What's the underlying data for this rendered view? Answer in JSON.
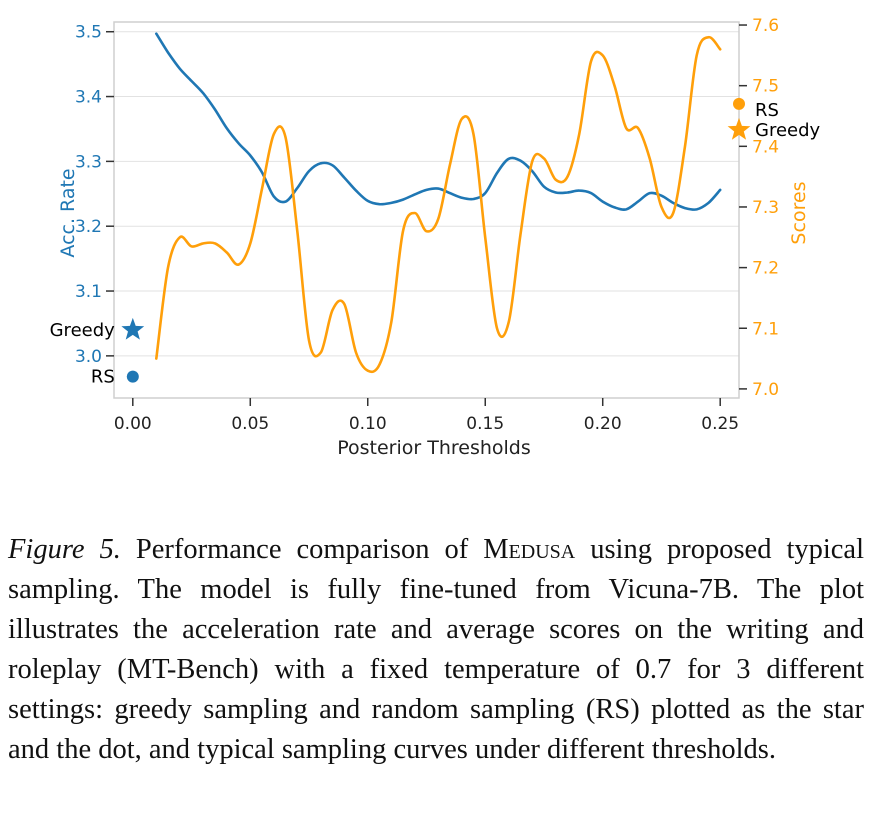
{
  "chart_data": {
    "type": "line",
    "xlabel": "Posterior Thresholds",
    "ylabel_left": "Acc. Rate",
    "ylabel_right": "Scores",
    "xlim": [
      -0.008,
      0.258
    ],
    "ylim_left": [
      2.935,
      3.515
    ],
    "ylim_right": [
      6.985,
      7.605
    ],
    "x_ticks": [
      "0.00",
      "0.05",
      "0.10",
      "0.15",
      "0.20",
      "0.25"
    ],
    "y_ticks_left": [
      "3.0",
      "3.1",
      "3.2",
      "3.3",
      "3.4",
      "3.5"
    ],
    "y_ticks_right": [
      "7.0",
      "7.1",
      "7.2",
      "7.3",
      "7.4",
      "7.5",
      "7.6"
    ],
    "colors": {
      "acc": "#1f77b4",
      "score": "#ff9f0a",
      "grid": "#e2e2e2"
    },
    "series": [
      {
        "name": "Acc. Rate",
        "axis": "left",
        "x": [
          0.01,
          0.015,
          0.02,
          0.025,
          0.03,
          0.035,
          0.04,
          0.045,
          0.05,
          0.055,
          0.06,
          0.065,
          0.07,
          0.075,
          0.08,
          0.085,
          0.09,
          0.095,
          0.1,
          0.105,
          0.11,
          0.115,
          0.12,
          0.125,
          0.13,
          0.135,
          0.14,
          0.145,
          0.15,
          0.155,
          0.16,
          0.165,
          0.17,
          0.175,
          0.18,
          0.185,
          0.19,
          0.195,
          0.2,
          0.205,
          0.21,
          0.215,
          0.22,
          0.225,
          0.23,
          0.235,
          0.24,
          0.245,
          0.25
        ],
        "values": [
          3.497,
          3.468,
          3.443,
          3.424,
          3.405,
          3.38,
          3.351,
          3.328,
          3.309,
          3.283,
          3.246,
          3.238,
          3.259,
          3.285,
          3.297,
          3.294,
          3.275,
          3.255,
          3.239,
          3.234,
          3.236,
          3.241,
          3.249,
          3.256,
          3.258,
          3.251,
          3.244,
          3.242,
          3.251,
          3.282,
          3.304,
          3.301,
          3.285,
          3.261,
          3.252,
          3.252,
          3.255,
          3.251,
          3.238,
          3.229,
          3.226,
          3.238,
          3.251,
          3.247,
          3.236,
          3.228,
          3.226,
          3.236,
          3.256
        ]
      },
      {
        "name": "Scores",
        "axis": "right",
        "x": [
          0.01,
          0.015,
          0.02,
          0.025,
          0.03,
          0.035,
          0.04,
          0.045,
          0.05,
          0.055,
          0.06,
          0.065,
          0.07,
          0.075,
          0.08,
          0.085,
          0.09,
          0.095,
          0.1,
          0.105,
          0.11,
          0.115,
          0.12,
          0.125,
          0.13,
          0.135,
          0.14,
          0.145,
          0.15,
          0.155,
          0.16,
          0.165,
          0.17,
          0.175,
          0.18,
          0.185,
          0.19,
          0.195,
          0.2,
          0.205,
          0.21,
          0.215,
          0.22,
          0.225,
          0.23,
          0.235,
          0.24,
          0.245,
          0.25
        ],
        "values": [
          7.05,
          7.2,
          7.25,
          7.235,
          7.24,
          7.24,
          7.225,
          7.205,
          7.24,
          7.33,
          7.42,
          7.415,
          7.26,
          7.08,
          7.06,
          7.13,
          7.14,
          7.06,
          7.03,
          7.04,
          7.11,
          7.26,
          7.29,
          7.26,
          7.28,
          7.37,
          7.445,
          7.42,
          7.25,
          7.1,
          7.11,
          7.255,
          7.375,
          7.38,
          7.345,
          7.35,
          7.42,
          7.54,
          7.55,
          7.5,
          7.43,
          7.43,
          7.38,
          7.3,
          7.29,
          7.4,
          7.55,
          7.58,
          7.56
        ]
      }
    ],
    "markers": [
      {
        "label": "Greedy",
        "axis": "left",
        "shape": "star",
        "x": 0.0,
        "value": 3.04
      },
      {
        "label": "RS",
        "axis": "left",
        "shape": "dot",
        "x": 0.0,
        "value": 2.968
      },
      {
        "label": "RS",
        "axis": "right",
        "shape": "dot",
        "value": 7.47
      },
      {
        "label": "Greedy",
        "axis": "right",
        "shape": "star",
        "value": 7.427
      }
    ]
  },
  "caption": {
    "figure_label": "Figure 5.",
    "text_before": " Performance comparison of ",
    "method_name": "Medusa",
    "text_after": " using proposed typical sampling. The model is fully fine-tuned from Vicuna-7B. The plot illustrates the acceleration rate and average scores on the writing and roleplay (MT-Bench) with a fixed temperature of 0.7 for 3 different settings: greedy sampling and random sampling (RS) plotted as the star and the dot, and typical sampling curves under different thresholds."
  }
}
